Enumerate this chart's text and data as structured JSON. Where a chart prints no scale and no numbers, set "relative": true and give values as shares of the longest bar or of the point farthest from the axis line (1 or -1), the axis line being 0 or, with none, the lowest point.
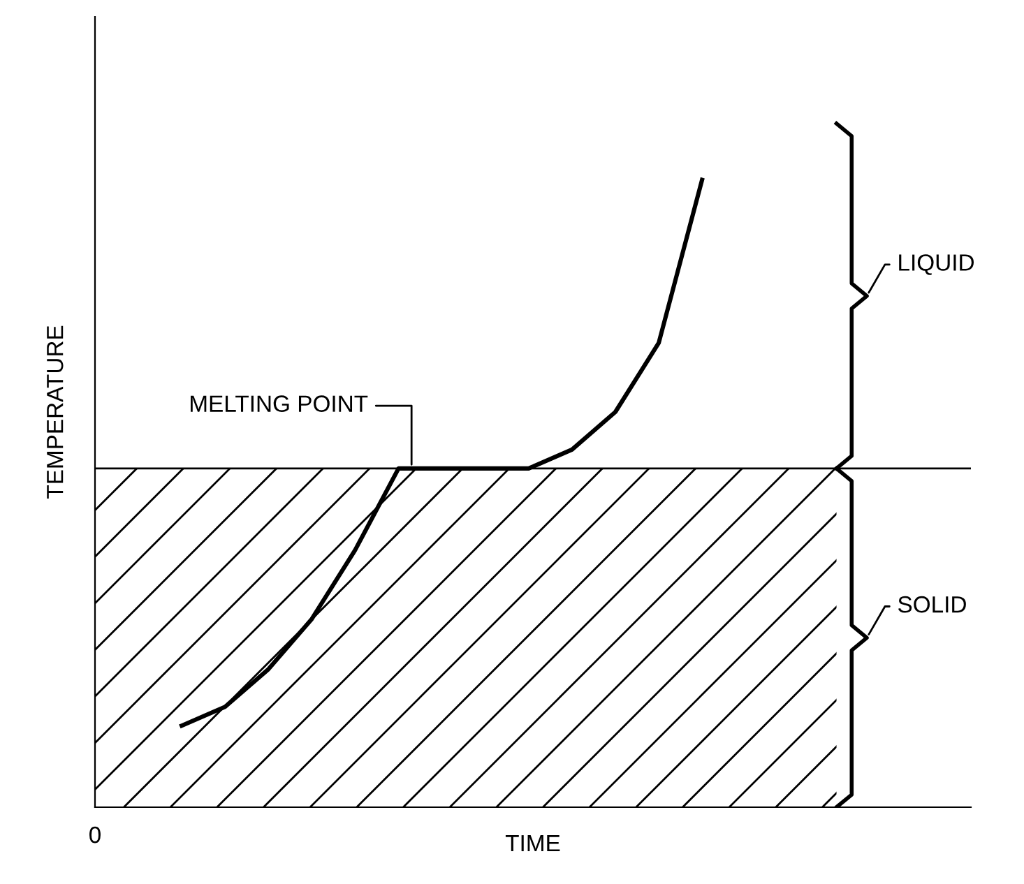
{
  "chart_data": {
    "type": "line",
    "relative": true,
    "xlabel": "TIME",
    "ylabel": "TEMPERATURE",
    "categories": [
      null,
      null,
      null,
      null,
      null,
      null,
      null,
      null,
      null,
      null,
      null,
      null,
      null
    ],
    "series": [
      {
        "color": "#000000",
        "values": [
          0.13,
          0.16,
          0.22,
          0.3,
          0.41,
          0.54,
          0.54,
          0.54,
          0.54,
          0.57,
          0.63,
          0.74,
          1
        ]
      }
    ],
    "ref_lines": [
      {
        "axis": "y",
        "value": 0.54,
        "label": "MELTING POINT",
        "color": "#000000",
        "line_style": "solid"
      }
    ],
    "bands": [
      {
        "axis": "y",
        "from": 0,
        "to": 0.54,
        "label": "SOLID",
        "color": "#000000"
      }
    ],
    "annotations": [
      "0",
      "LIQUID"
    ],
    "marker": "none",
    "line_style": "solid"
  }
}
